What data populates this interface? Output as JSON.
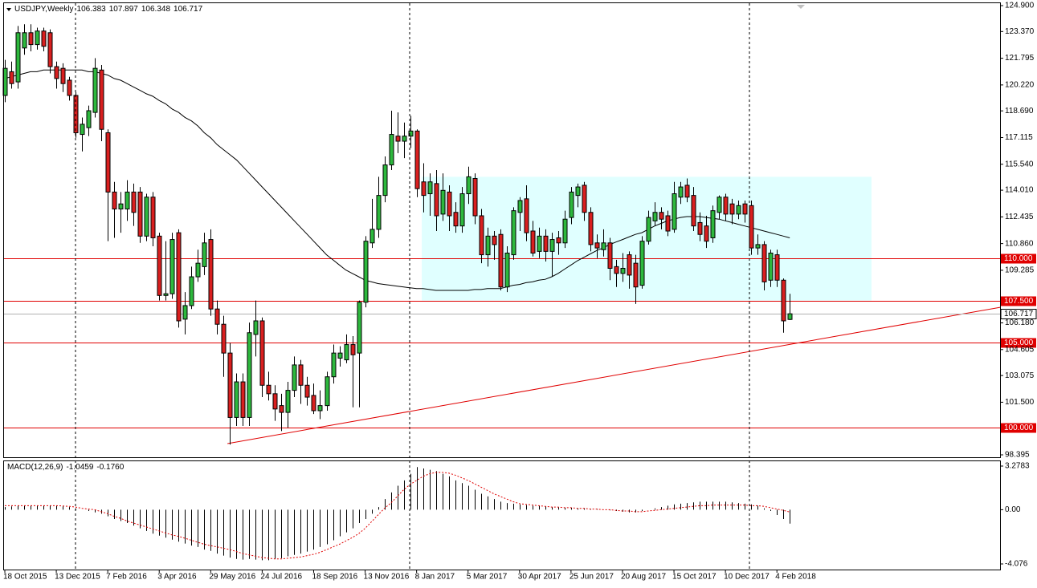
{
  "chart_data": [
    {
      "type": "candlestick",
      "title": "USDJPY,Weekly",
      "categories": [
        "18 Oct 2015",
        null,
        null,
        null,
        null,
        null,
        null,
        null,
        "13 Dec 2015",
        null,
        null,
        null,
        null,
        null,
        null,
        null,
        "7 Feb 2016",
        null,
        null,
        null,
        null,
        null,
        null,
        null,
        "3 Apr 2016",
        null,
        null,
        null,
        null,
        null,
        null,
        null,
        "29 May 2016",
        null,
        null,
        null,
        null,
        null,
        null,
        null,
        "24 Jul 2016",
        null,
        null,
        null,
        null,
        null,
        null,
        null,
        "18 Sep 2016",
        null,
        null,
        null,
        null,
        null,
        null,
        null,
        "13 Nov 2016",
        null,
        null,
        null,
        null,
        null,
        null,
        null,
        "8 Jan 2017",
        null,
        null,
        null,
        null,
        null,
        null,
        null,
        "5 Mar 2017",
        null,
        null,
        null,
        null,
        null,
        null,
        null,
        "30 Apr 2017",
        null,
        null,
        null,
        null,
        null,
        null,
        null,
        "25 Jun 2017",
        null,
        null,
        null,
        null,
        null,
        null,
        null,
        "20 Aug 2017",
        null,
        null,
        null,
        null,
        null,
        null,
        null,
        "15 Oct 2017",
        null,
        null,
        null,
        null,
        null,
        null,
        null,
        "10 Dec 2017",
        null,
        null,
        null,
        null,
        null,
        null,
        null,
        "4 Feb 2018",
        null,
        null
      ],
      "open": [
        119.6,
        121.0,
        120.4,
        122.4,
        123.3,
        122.6,
        123.4,
        123.3,
        121.3,
        121.2,
        120.5,
        119.6,
        117.3,
        117.7,
        118.6,
        121.1,
        117.4,
        113.9,
        112.9,
        112.9,
        113.9,
        113.9,
        111.3,
        113.6,
        111.3,
        107.8,
        107.9,
        111.5,
        106.4,
        107.2,
        108.9,
        109.5,
        111.1,
        107.0,
        106.1,
        104.4,
        100.6,
        102.7,
        100.6,
        105.5,
        106.3,
        102.5,
        102.0,
        101.3,
        100.9,
        102.2,
        103.7,
        102.5,
        101.9,
        101.0,
        101.3,
        103.0,
        104.1,
        104.0,
        104.9,
        104.4,
        107.4,
        110.9,
        111.7,
        113.7,
        115.5,
        117.2,
        116.9,
        117.2,
        117.5,
        114.5,
        113.8,
        114.4,
        112.6,
        113.9,
        112.7,
        111.9,
        113.8,
        114.7,
        112.5,
        110.2,
        111.3,
        111.4,
        108.3,
        110.2,
        112.7,
        113.5,
        111.6,
        110.4,
        111.3,
        110.4,
        111.2,
        110.9,
        112.4,
        113.7,
        114.3,
        112.7,
        110.9,
        110.5,
        110.9,
        109.5,
        109.1,
        110.2,
        109.7,
        108.4,
        111.0,
        112.2,
        112.7,
        112.5,
        111.7,
        113.6,
        114.3,
        113.7,
        112.1,
        111.9,
        111.2,
        112.7,
        113.6,
        113.2,
        112.6,
        113.2,
        113.1,
        110.6,
        110.8,
        108.7,
        110.2,
        108.7,
        106.383
      ],
      "high": [
        121.7,
        121.6,
        123.7,
        123.8,
        123.8,
        123.6,
        123.6,
        123.5,
        121.6,
        121.5,
        120.7,
        119.8,
        118.3,
        119.0,
        121.8,
        121.4,
        117.6,
        114.5,
        113.9,
        114.6,
        114.4,
        114.2,
        113.8,
        113.9,
        111.5,
        111.0,
        111.5,
        111.7,
        108.0,
        109.5,
        110.5,
        111.5,
        111.7,
        107.5,
        106.6,
        105.0,
        103.2,
        103.2,
        106.2,
        107.5,
        106.5,
        103.3,
        102.5,
        102.0,
        102.7,
        104.2,
        104.0,
        103.0,
        102.6,
        102.2,
        103.3,
        104.9,
        104.8,
        105.5,
        105.4,
        107.5,
        111.3,
        113.5,
        114.8,
        116.0,
        118.7,
        118.6,
        118.0,
        118.4,
        117.6,
        115.6,
        115.0,
        115.2,
        115.0,
        114.3,
        113.3,
        114.2,
        115.4,
        115.0,
        112.9,
        111.8,
        111.6,
        111.7,
        110.7,
        113.0,
        113.6,
        114.3,
        112.2,
        111.8,
        111.7,
        111.5,
        111.6,
        112.8,
        114.2,
        114.4,
        114.5,
        113.0,
        111.4,
        111.7,
        111.2,
        109.9,
        110.3,
        110.4,
        110.2,
        111.3,
        112.8,
        113.3,
        113.0,
        112.8,
        114.5,
        114.5,
        114.7,
        114.2,
        112.7,
        112.5,
        113.1,
        113.7,
        113.8,
        113.5,
        113.4,
        113.4,
        113.4,
        111.4,
        111.0,
        110.5,
        110.5,
        108.8,
        107.897
      ],
      "low": [
        119.2,
        120.0,
        120.0,
        122.0,
        122.2,
        122.3,
        122.2,
        120.9,
        120.0,
        119.8,
        119.3,
        117.1,
        116.3,
        117.2,
        118.3,
        116.9,
        111.0,
        111.2,
        111.5,
        112.2,
        111.9,
        110.9,
        111.0,
        110.7,
        107.5,
        107.5,
        107.6,
        105.9,
        105.5,
        107.0,
        108.6,
        109.0,
        106.6,
        105.5,
        103.0,
        99.0,
        100.1,
        100.1,
        100.1,
        104.2,
        101.8,
        101.6,
        100.4,
        99.8,
        100.0,
        101.8,
        101.4,
        101.3,
        100.8,
        100.5,
        101.0,
        102.6,
        103.6,
        103.8,
        101.2,
        101.2,
        107.1,
        110.6,
        111.2,
        113.3,
        115.2,
        116.2,
        115.9,
        116.5,
        113.6,
        112.7,
        112.5,
        111.6,
        112.2,
        111.6,
        111.5,
        111.5,
        113.2,
        112.0,
        109.7,
        109.5,
        109.9,
        108.1,
        108.0,
        109.9,
        111.6,
        111.0,
        110.1,
        110.0,
        109.8,
        108.9,
        110.2,
        110.6,
        112.0,
        113.0,
        112.2,
        110.4,
        110.0,
        110.1,
        108.7,
        108.3,
        108.6,
        108.2,
        107.3,
        108.2,
        110.8,
        111.9,
        111.7,
        111.3,
        111.5,
        113.2,
        113.3,
        111.6,
        111.0,
        110.6,
        110.9,
        112.3,
        112.2,
        112.0,
        112.3,
        112.1,
        110.2,
        110.2,
        108.1,
        108.3,
        108.3,
        105.6,
        106.348
      ],
      "close": [
        121.2,
        120.3,
        123.3,
        123.3,
        122.6,
        123.4,
        122.5,
        121.3,
        120.6,
        120.3,
        119.6,
        117.4,
        117.9,
        118.7,
        121.2,
        117.6,
        113.9,
        112.9,
        113.2,
        113.9,
        112.7,
        111.3,
        113.6,
        111.2,
        107.8,
        107.9,
        111.1,
        106.3,
        107.2,
        108.9,
        109.7,
        110.9,
        107.0,
        106.1,
        104.4,
        100.6,
        102.7,
        100.6,
        105.6,
        106.3,
        102.5,
        102.0,
        101.1,
        100.9,
        102.2,
        103.7,
        102.5,
        101.8,
        101.0,
        101.3,
        103.0,
        104.4,
        104.4,
        104.9,
        104.3,
        107.4,
        111.0,
        111.7,
        113.7,
        115.5,
        117.3,
        116.9,
        117.2,
        117.5,
        114.1,
        113.7,
        114.5,
        112.5,
        114.0,
        112.5,
        111.9,
        113.8,
        114.8,
        112.5,
        110.2,
        111.3,
        110.8,
        108.3,
        110.3,
        112.8,
        113.4,
        111.5,
        110.3,
        111.3,
        110.4,
        111.1,
        110.9,
        112.3,
        113.9,
        114.2,
        112.7,
        110.8,
        110.6,
        110.9,
        109.4,
        109.1,
        109.4,
        109.0,
        108.3,
        111.0,
        112.4,
        112.7,
        112.3,
        111.6,
        113.8,
        114.2,
        113.6,
        111.9,
        111.4,
        111.0,
        112.8,
        113.6,
        112.6,
        112.6,
        113.1,
        112.6,
        110.6,
        110.8,
        108.6,
        110.3,
        108.7,
        106.3,
        106.717
      ],
      "up_color": "#2db83d",
      "down_color": "#d91f1f",
      "outline_color": "#000000",
      "ma": {
        "color": "#000000",
        "values": [
          120.6,
          120.7,
          120.8,
          120.9,
          121.0,
          121.0,
          121.1,
          121.1,
          121.1,
          121.1,
          121.1,
          121.1,
          121.1,
          121.0,
          121.0,
          120.9,
          120.8,
          120.6,
          120.5,
          120.3,
          120.1,
          119.9,
          119.7,
          119.55,
          119.3,
          119.1,
          118.8,
          118.6,
          118.3,
          118.1,
          117.8,
          117.4,
          117.1,
          116.7,
          116.4,
          116.1,
          115.8,
          115.4,
          115.0,
          114.6,
          114.2,
          113.8,
          113.4,
          113.0,
          112.6,
          112.2,
          111.8,
          111.4,
          111.0,
          110.6,
          110.2,
          109.9,
          109.6,
          109.3,
          109.1,
          108.9,
          108.7,
          108.6,
          108.5,
          108.45,
          108.4,
          108.35,
          108.3,
          108.25,
          108.2,
          108.2,
          108.15,
          108.1,
          108.1,
          108.1,
          108.1,
          108.1,
          108.1,
          108.15,
          108.15,
          108.2,
          108.2,
          108.2,
          108.3,
          108.4,
          108.45,
          108.55,
          108.6,
          108.7,
          108.75,
          108.9,
          109.1,
          109.35,
          109.6,
          109.85,
          110.05,
          110.25,
          110.45,
          110.6,
          110.8,
          110.95,
          111.1,
          111.25,
          111.4,
          111.5,
          111.7,
          111.9,
          112.05,
          112.2,
          112.3,
          112.4,
          112.45,
          112.45,
          112.45,
          112.4,
          112.35,
          112.3,
          112.2,
          112.1,
          112.0,
          111.9,
          111.8,
          111.7,
          111.6,
          111.5,
          111.4,
          111.3,
          111.2
        ]
      },
      "ylim": [
        98.395,
        124.9
      ],
      "yticks": [
        {
          "value": 124.9,
          "label": "124.900"
        },
        {
          "value": 123.37,
          "label": "123.370"
        },
        {
          "value": 121.795,
          "label": "121.795"
        },
        {
          "value": 120.22,
          "label": "120.220"
        },
        {
          "value": 118.69,
          "label": "118.690"
        },
        {
          "value": 117.115,
          "label": "117.115"
        },
        {
          "value": 115.54,
          "label": "115.540"
        },
        {
          "value": 114.01,
          "label": "114.010"
        },
        {
          "value": 112.435,
          "label": "112.435"
        },
        {
          "value": 110.86,
          "label": "110.860"
        },
        {
          "value": 109.285,
          "label": "109.285"
        },
        {
          "value": 106.18,
          "label": "106.180"
        },
        {
          "value": 104.605,
          "label": "104.605"
        },
        {
          "value": 103.075,
          "label": "103.075"
        },
        {
          "value": 101.5,
          "label": "101.500"
        },
        {
          "value": 98.395,
          "label": "98.395"
        }
      ],
      "levels": [
        {
          "value": 110,
          "label": "110.000"
        },
        {
          "value": 107.5,
          "label": "107.500"
        },
        {
          "value": 105,
          "label": "105.000"
        },
        {
          "value": 100,
          "label": "100.000"
        }
      ],
      "level_color": "#e00000",
      "zone": {
        "x": [
          64.8,
          134.7
        ],
        "y": [
          107.5,
          114.8
        ],
        "color": "#e0ffff"
      },
      "trendline": {
        "x": [
          34.6,
          154.7
        ],
        "y": [
          99.06,
          107.1
        ],
        "color": "#e00000"
      }
    },
    {
      "type": "macd",
      "title": "MACD(12,26,9)",
      "readout": [
        {
          "value": -1.0459,
          "label": "-1.0459"
        },
        {
          "value": -0.176,
          "label": "-0.1760"
        }
      ],
      "histogram": {
        "color": "#000000",
        "values": [
          0.2,
          0.25,
          0.3,
          0.3,
          0.3,
          0.3,
          0.3,
          0.3,
          0.3,
          0.25,
          0.2,
          0.1,
          0.0,
          -0.1,
          -0.2,
          -0.3,
          -0.5,
          -0.7,
          -0.85,
          -1.0,
          -1.2,
          -1.4,
          -1.6,
          -1.8,
          -1.95,
          -2.1,
          -2.25,
          -2.4,
          -2.55,
          -2.7,
          -2.8,
          -3.0,
          -3.1,
          -3.3,
          -3.45,
          -3.6,
          -3.7,
          -3.75,
          -3.7,
          -3.75,
          -3.8,
          -3.8,
          -3.7,
          -3.65,
          -3.5,
          -3.4,
          -3.3,
          -3.15,
          -3.0,
          -2.8,
          -2.6,
          -2.3,
          -2.0,
          -1.7,
          -1.4,
          -1.0,
          -0.7,
          -0.3,
          0.2,
          0.8,
          1.3,
          1.8,
          2.2,
          2.7,
          3.2,
          3.1,
          3.0,
          2.9,
          2.7,
          2.5,
          2.2,
          2.0,
          1.8,
          1.5,
          1.2,
          1.0,
          0.8,
          0.6,
          0.5,
          0.45,
          0.4,
          0.35,
          0.3,
          0.3,
          0.25,
          0.2,
          0.2,
          0.15,
          0.15,
          0.1,
          0.1,
          0.05,
          0.05,
          0.0,
          -0.05,
          -0.1,
          -0.15,
          -0.2,
          -0.2,
          -0.1,
          0.0,
          0.1,
          0.2,
          0.3,
          0.4,
          0.45,
          0.5,
          0.55,
          0.6,
          0.6,
          0.6,
          0.6,
          0.6,
          0.55,
          0.5,
          0.45,
          0.4,
          0.3,
          0.1,
          -0.1,
          -0.4,
          -0.7,
          -1.0459
        ]
      },
      "signal": {
        "color": "#e00000",
        "values": [
          0.3,
          0.3,
          0.3,
          0.3,
          0.3,
          0.3,
          0.3,
          0.3,
          0.3,
          0.28,
          0.25,
          0.2,
          0.1,
          0.05,
          0.0,
          -0.15,
          -0.3,
          -0.5,
          -0.65,
          -0.85,
          -1.0,
          -1.15,
          -1.3,
          -1.45,
          -1.6,
          -1.75,
          -1.9,
          -2.0,
          -2.15,
          -2.3,
          -2.45,
          -2.6,
          -2.7,
          -2.8,
          -2.9,
          -3.0,
          -3.15,
          -3.3,
          -3.4,
          -3.5,
          -3.6,
          -3.65,
          -3.7,
          -3.7,
          -3.65,
          -3.6,
          -3.55,
          -3.45,
          -3.35,
          -3.2,
          -3.0,
          -2.8,
          -2.6,
          -2.35,
          -2.1,
          -1.8,
          -1.4,
          -0.9,
          -0.4,
          0.1,
          0.5,
          1.0,
          1.5,
          1.9,
          2.2,
          2.5,
          2.7,
          2.8,
          2.8,
          2.75,
          2.6,
          2.4,
          2.2,
          1.95,
          1.7,
          1.45,
          1.2,
          1.0,
          0.8,
          0.6,
          0.45,
          0.4,
          0.35,
          0.3,
          0.25,
          0.2,
          0.2,
          0.15,
          0.15,
          0.1,
          0.1,
          0.05,
          0.05,
          0.0,
          0.0,
          -0.05,
          -0.1,
          -0.1,
          -0.15,
          -0.15,
          -0.1,
          -0.05,
          0.0,
          0.05,
          0.1,
          0.15,
          0.2,
          0.25,
          0.3,
          0.3,
          0.35,
          0.35,
          0.35,
          0.35,
          0.35,
          0.35,
          0.3,
          0.3,
          0.25,
          0.15,
          0.05,
          -0.05,
          -0.176
        ]
      },
      "ylim": [
        -4.076,
        3.2783
      ],
      "yticks": [
        3.2783,
        {
          "value": 0,
          "label": "0.00"
        },
        -4.076
      ]
    }
  ]
}
